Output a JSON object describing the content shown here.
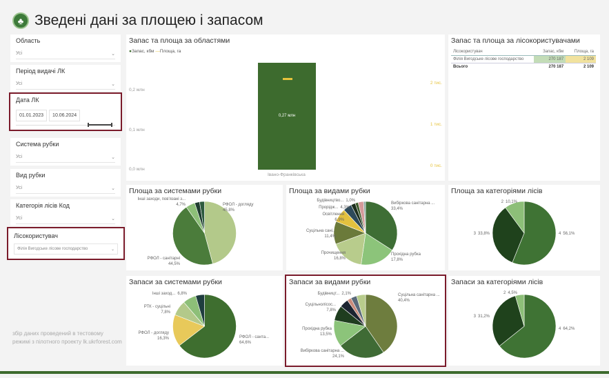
{
  "header": {
    "title": "Зведені дані за площею і запасом",
    "logo_icon": "tree-icon"
  },
  "slicers": [
    {
      "label": "Область",
      "value": "Усі"
    },
    {
      "label": "Період видачі ЛК",
      "value": "Усі"
    },
    {
      "label": "Дата ЛК",
      "from": "01.01.2023",
      "to": "10.06.2024"
    },
    {
      "label": "Система рубки",
      "value": "Усі"
    },
    {
      "label": "Вид рубки",
      "value": "Усі"
    },
    {
      "label": "Категорія лісів Код",
      "value": "Усі"
    },
    {
      "label": "Лісокористувач",
      "value": "Філія Вигодське лісове господарство"
    }
  ],
  "footer_note": "збір даних проведений в тестовому режимі з пілотного проекту lk.ukrforest.com",
  "colors": {
    "stock": "#3d6b2e",
    "area": "#e6c33c",
    "accent": "#7a1a2a"
  },
  "bar_chart": {
    "title": "Запас та площа за областями",
    "legend": [
      "Запас, кбм",
      "Площа, га"
    ],
    "left_ticks": [
      "0,0 млн",
      "0,1 млн",
      "0,2 млн"
    ],
    "right_ticks": [
      "0 тис.",
      "1 тис.",
      "2 тис."
    ],
    "chart_data": {
      "type": "bar",
      "categories": [
        "Івано-Франківська"
      ],
      "series": [
        {
          "name": "Запас, кбм",
          "values": [
            270187
          ]
        },
        {
          "name": "Площа, га",
          "values": [
            2109
          ]
        }
      ],
      "data_label": "0,27 млн",
      "ylim": [
        0,
        270000
      ],
      "y2lim": [
        0,
        2300
      ]
    }
  },
  "table": {
    "title": "Запас та площа за лісокористувачами",
    "headers": [
      "Лісокористувач",
      "Запас, кбм",
      "Площа, га"
    ],
    "rows": [
      [
        "Філія Вигодське лісове господарство",
        "270 187",
        "2 109"
      ]
    ],
    "total": [
      "Всього",
      "270 187",
      "2 109"
    ]
  },
  "chart_data": [
    {
      "type": "pie",
      "title": "Площа за системами рубки",
      "slices": [
        {
          "label": "РФОЛ - догляду",
          "pct": "45,8%",
          "value": 45.8,
          "color": "#b3c98a"
        },
        {
          "label": "РФОЛ - санітарні",
          "pct": "44,5%",
          "value": 44.5,
          "color": "#4b7c3b"
        },
        {
          "label": "Інші заходи, пов'язані з...",
          "pct": "4,7%",
          "value": 4.7,
          "color": "#8dbf78"
        },
        {
          "label": "",
          "pct": "",
          "value": 2.5,
          "color": "#1f3d2f"
        },
        {
          "label": "",
          "pct": "",
          "value": 2.5,
          "color": "#2e5a3e"
        }
      ]
    },
    {
      "type": "pie",
      "title": "Площа за видами рубки",
      "slices": [
        {
          "label": "Вибіркова санітарна ...",
          "pct": "33,4%",
          "value": 33.4,
          "color": "#3e6e35"
        },
        {
          "label": "Прохідна рубка",
          "pct": "17,8%",
          "value": 17.8,
          "color": "#8cc47a"
        },
        {
          "label": "Прочищення",
          "pct": "16,8%",
          "value": 16.8,
          "color": "#b8cc8c"
        },
        {
          "label": "Суцільна сані...",
          "pct": "11,4%",
          "value": 11.4,
          "color": "#6b7a3a"
        },
        {
          "label": "Освітлення",
          "pct": "6,9%",
          "value": 6.9,
          "color": "#e3c13e"
        },
        {
          "label": "Прорідж...",
          "pct": "4,3%",
          "value": 4.3,
          "color": "#2e4a5a"
        },
        {
          "label": "",
          "pct": "",
          "value": 2.2,
          "color": "#1c2e1c"
        },
        {
          "label": "",
          "pct": "",
          "value": 1.5,
          "color": "#3c5a2a"
        },
        {
          "label": "",
          "pct": "",
          "value": 2.7,
          "color": "#d49a9a"
        },
        {
          "label": "Будівництво...",
          "pct": "1,0%",
          "value": 1.0,
          "color": "#8aa8a0"
        }
      ]
    },
    {
      "type": "pie",
      "title": "Площа за категоріями лісів",
      "slices": [
        {
          "label": "4",
          "pct": "56,1%",
          "value": 56.1,
          "color": "#3f7334"
        },
        {
          "label": "3",
          "pct": "33,8%",
          "value": 33.8,
          "color": "#1f421c"
        },
        {
          "label": "2",
          "pct": "10,1%",
          "value": 10.1,
          "color": "#8dbf78"
        }
      ]
    },
    {
      "type": "pie",
      "title": "Запаси за системами рубки",
      "slices": [
        {
          "label": "РФОЛ - санта...",
          "pct": "64,6%",
          "value": 64.6,
          "color": "#3e6e2f"
        },
        {
          "label": "РФОЛ - догляду",
          "pct": "16,3%",
          "value": 16.3,
          "color": "#e8c95a"
        },
        {
          "label": "РТК - суцільні",
          "pct": "7,8%",
          "value": 7.8,
          "color": "#b3c98a"
        },
        {
          "label": "Інші заход...",
          "pct": "6,8%",
          "value": 6.8,
          "color": "#8dbf78"
        },
        {
          "label": "",
          "pct": "",
          "value": 4.5,
          "color": "#1f3d3f"
        }
      ]
    },
    {
      "type": "pie",
      "title": "Запаси за видами рубки",
      "slices": [
        {
          "label": "Суцільна санітарна ...",
          "pct": "40,4%",
          "value": 40.4,
          "color": "#6e7d3e"
        },
        {
          "label": "Вибіркова санітарна ...",
          "pct": "24,1%",
          "value": 24.1,
          "color": "#3f6b35"
        },
        {
          "label": "Прохідна рубка",
          "pct": "13,5%",
          "value": 13.5,
          "color": "#8cc47a"
        },
        {
          "label": "Суцільнолісос...",
          "pct": "7,8%",
          "value": 7.8,
          "color": "#1f3d1f"
        },
        {
          "label": "",
          "pct": "",
          "value": 4.5,
          "color": "#1c2430"
        },
        {
          "label": "Будівницт...",
          "pct": "2,1%",
          "value": 2.1,
          "color": "#c98a7a"
        },
        {
          "label": "",
          "pct": "",
          "value": 3.0,
          "color": "#5a6a7a"
        },
        {
          "label": "",
          "pct": "",
          "value": 4.6,
          "color": "#b8cc8c"
        }
      ]
    },
    {
      "type": "pie",
      "title": "Запаси за категоріями лісів",
      "slices": [
        {
          "label": "4",
          "pct": "64,2%",
          "value": 64.2,
          "color": "#3f7334"
        },
        {
          "label": "3",
          "pct": "31,2%",
          "value": 31.2,
          "color": "#1f421c"
        },
        {
          "label": "2",
          "pct": "4,5%",
          "value": 4.5,
          "color": "#8dbf78"
        }
      ]
    }
  ]
}
